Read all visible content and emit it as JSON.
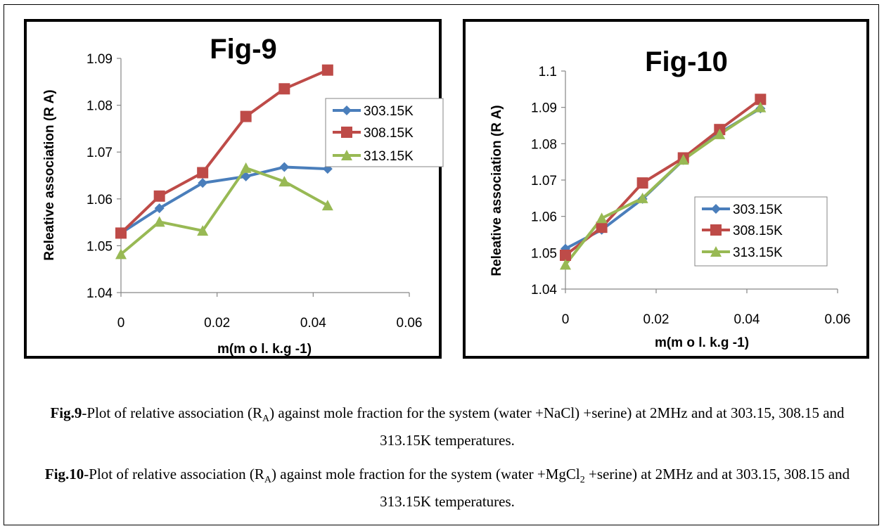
{
  "chart_data": [
    {
      "type": "line",
      "title": "Fig-9",
      "xlabel": "m(m o l. k.g -1)",
      "ylabel": "Releative association (R A)",
      "xlim": [
        0,
        0.06
      ],
      "ylim": [
        1.04,
        1.09
      ],
      "x_ticks": [
        "0",
        "0.02",
        "0.04",
        "0.06"
      ],
      "y_ticks": [
        "1.04",
        "1.05",
        "1.06",
        "1.07",
        "1.08",
        "1.09"
      ],
      "legend_position": "right",
      "grid": false,
      "x": [
        0,
        0.008,
        0.017,
        0.026,
        0.034,
        0.043
      ],
      "series": [
        {
          "name": "303.15K",
          "color": "#4a7ebb",
          "marker": "diamond",
          "values": [
            1.0527,
            1.058,
            1.0634,
            1.0648,
            1.0668,
            1.0664
          ]
        },
        {
          "name": "308.15K",
          "color": "#be4b48",
          "marker": "square",
          "values": [
            1.0527,
            1.0606,
            1.0656,
            1.0776,
            1.0835,
            1.0875
          ]
        },
        {
          "name": "313.15K",
          "color": "#98b954",
          "marker": "triangle",
          "values": [
            1.0482,
            1.0551,
            1.0532,
            1.0666,
            1.0637,
            1.0586
          ]
        }
      ]
    },
    {
      "type": "line",
      "title": "Fig-10",
      "xlabel": "m(m o l. k.g -1)",
      "ylabel": "Releative association (R A)",
      "xlim": [
        0,
        0.06
      ],
      "ylim": [
        1.04,
        1.1
      ],
      "x_ticks": [
        "0",
        "0.02",
        "0.04",
        "0.06"
      ],
      "y_ticks": [
        "1.04",
        "1.05",
        "1.06",
        "1.07",
        "1.08",
        "1.09",
        "1.1"
      ],
      "legend_position": "right",
      "grid": false,
      "x": [
        0,
        0.008,
        0.017,
        0.026,
        0.034,
        0.043
      ],
      "series": [
        {
          "name": "303.15K",
          "color": "#4a7ebb",
          "marker": "diamond",
          "values": [
            1.0511,
            1.0563,
            1.0648,
            1.0755,
            1.083,
            1.0897
          ]
        },
        {
          "name": "308.15K",
          "color": "#be4b48",
          "marker": "square",
          "values": [
            1.0493,
            1.057,
            1.0692,
            1.0761,
            1.0839,
            1.0922
          ]
        },
        {
          "name": "313.15K",
          "color": "#98b954",
          "marker": "triangle",
          "values": [
            1.0467,
            1.0595,
            1.065,
            1.0756,
            1.0826,
            1.09
          ]
        }
      ]
    }
  ],
  "captions": {
    "fig9_label": "Fig.9",
    "fig9_text_a": "-Plot of relative association (R",
    "fig9_sub": "A",
    "fig9_text_b": ") against mole fraction for the   system (water +NaCl) +serine) at 2MHz and at 303.15, 308.15 and 313.15K temperatures.",
    "fig10_label": "Fig.10",
    "fig10_text_a": "-Plot of relative association (R",
    "fig10_sub": "A",
    "fig10_text_b": ") against mole fraction for the system (water +MgCl",
    "fig10_sub2": "2",
    "fig10_text_c": " +serine) at 2MHz and at 303.15, 308.15 and 313.15K temperatures."
  }
}
